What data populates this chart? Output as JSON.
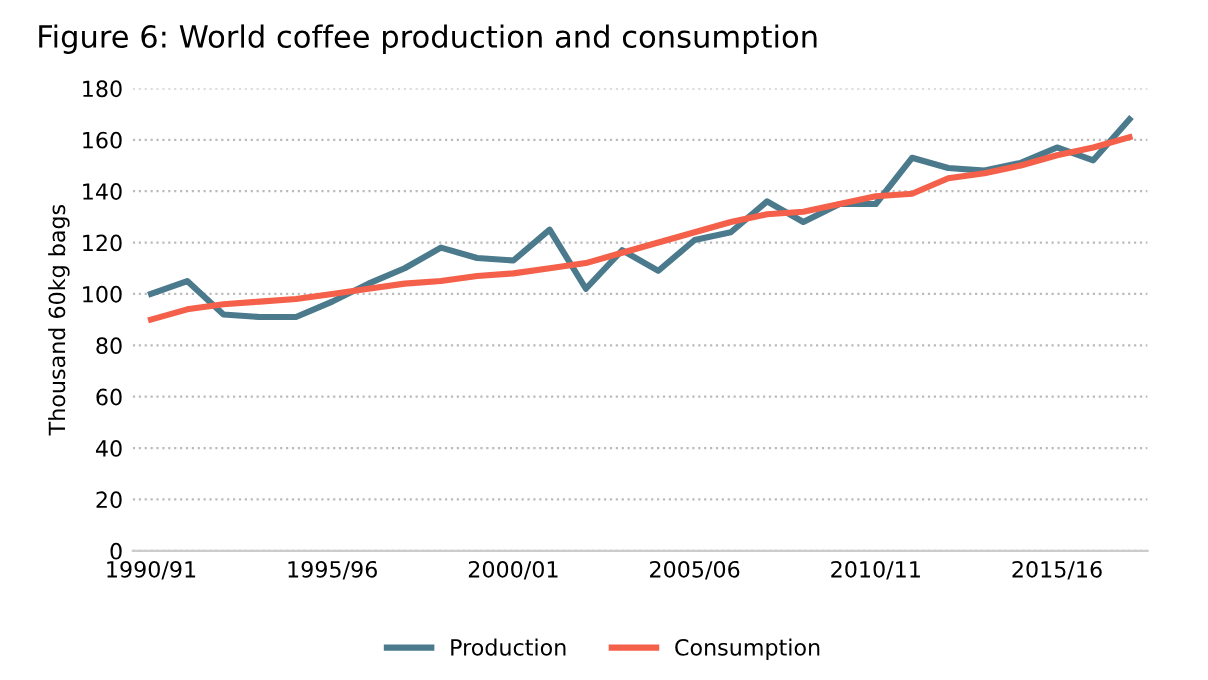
{
  "chart_data": {
    "type": "line",
    "title": "Figure 6: World coffee production and consumption",
    "ylabel": "Thousand 60kg bags",
    "categories": [
      "1990/91",
      null,
      null,
      null,
      null,
      "1995/96",
      null,
      null,
      null,
      null,
      "2000/01",
      null,
      null,
      null,
      null,
      "2005/06",
      null,
      null,
      null,
      null,
      "2010/11",
      null,
      null,
      null,
      null,
      "2015/16",
      null,
      null
    ],
    "series": [
      {
        "name": "Production",
        "color": "#4a7a8c",
        "values": [
          100,
          105,
          92,
          91,
          91,
          97,
          104,
          110,
          118,
          114,
          113,
          125,
          102,
          117,
          109,
          121,
          124,
          136,
          128,
          135,
          135,
          153,
          149,
          148,
          151,
          157,
          152,
          168
        ]
      },
      {
        "name": "Consumption",
        "color": "#f4604a",
        "values": [
          90,
          94,
          96,
          97,
          98,
          100,
          102,
          104,
          105,
          107,
          108,
          110,
          112,
          116,
          120,
          124,
          128,
          131,
          132,
          135,
          138,
          139,
          145,
          147,
          150,
          154,
          157,
          161
        ]
      }
    ],
    "ylim": [
      0,
      180
    ],
    "yticks": [
      0,
      20,
      40,
      60,
      80,
      100,
      120,
      140,
      160,
      180
    ],
    "grid": "y",
    "legend": "bottom",
    "marker": "none",
    "line_style": "solid"
  }
}
